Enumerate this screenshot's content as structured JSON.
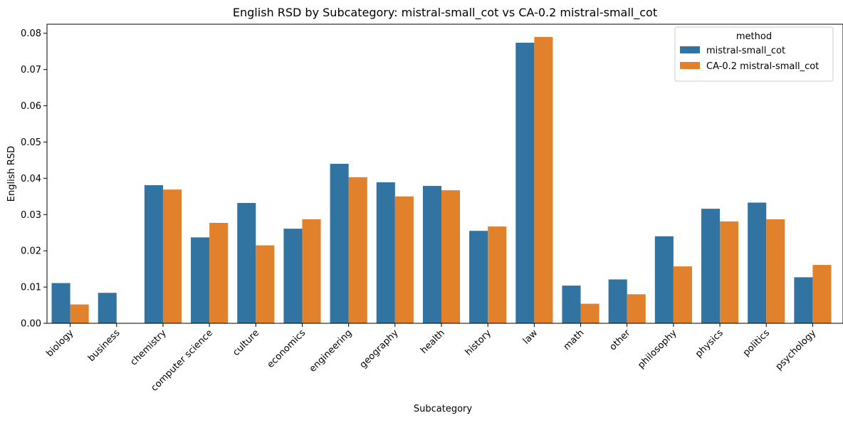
{
  "chart_data": {
    "type": "bar",
    "title": "English RSD by Subcategory: mistral-small_cot vs CA-0.2 mistral-small_cot",
    "xlabel": "Subcategory",
    "ylabel": "English RSD",
    "ylim": [
      0,
      0.0825
    ],
    "yticks": [
      "0.00",
      "0.01",
      "0.02",
      "0.03",
      "0.04",
      "0.05",
      "0.06",
      "0.07",
      "0.08"
    ],
    "grid": false,
    "legend": {
      "title": "method",
      "placement": "top-right"
    },
    "categories": [
      "biology",
      "business",
      "chemistry",
      "computer science",
      "culture",
      "economics",
      "engineering",
      "geography",
      "health",
      "history",
      "law",
      "math",
      "other",
      "philosophy",
      "physics",
      "politics",
      "psychology"
    ],
    "series": [
      {
        "name": "mistral-small_cot",
        "color": "#3274a1",
        "values": [
          0.0111,
          0.0084,
          0.0381,
          0.0237,
          0.0332,
          0.0261,
          0.044,
          0.0389,
          0.0379,
          0.0255,
          0.0774,
          0.0104,
          0.0121,
          0.024,
          0.0316,
          0.0333,
          0.0127
        ]
      },
      {
        "name": "CA-0.2 mistral-small_cot",
        "color": "#e1812c",
        "values": [
          0.0052,
          0.0,
          0.0369,
          0.0277,
          0.0215,
          0.0287,
          0.0403,
          0.035,
          0.0367,
          0.0267,
          0.079,
          0.0054,
          0.008,
          0.0157,
          0.0281,
          0.0287,
          0.0161
        ]
      }
    ]
  }
}
